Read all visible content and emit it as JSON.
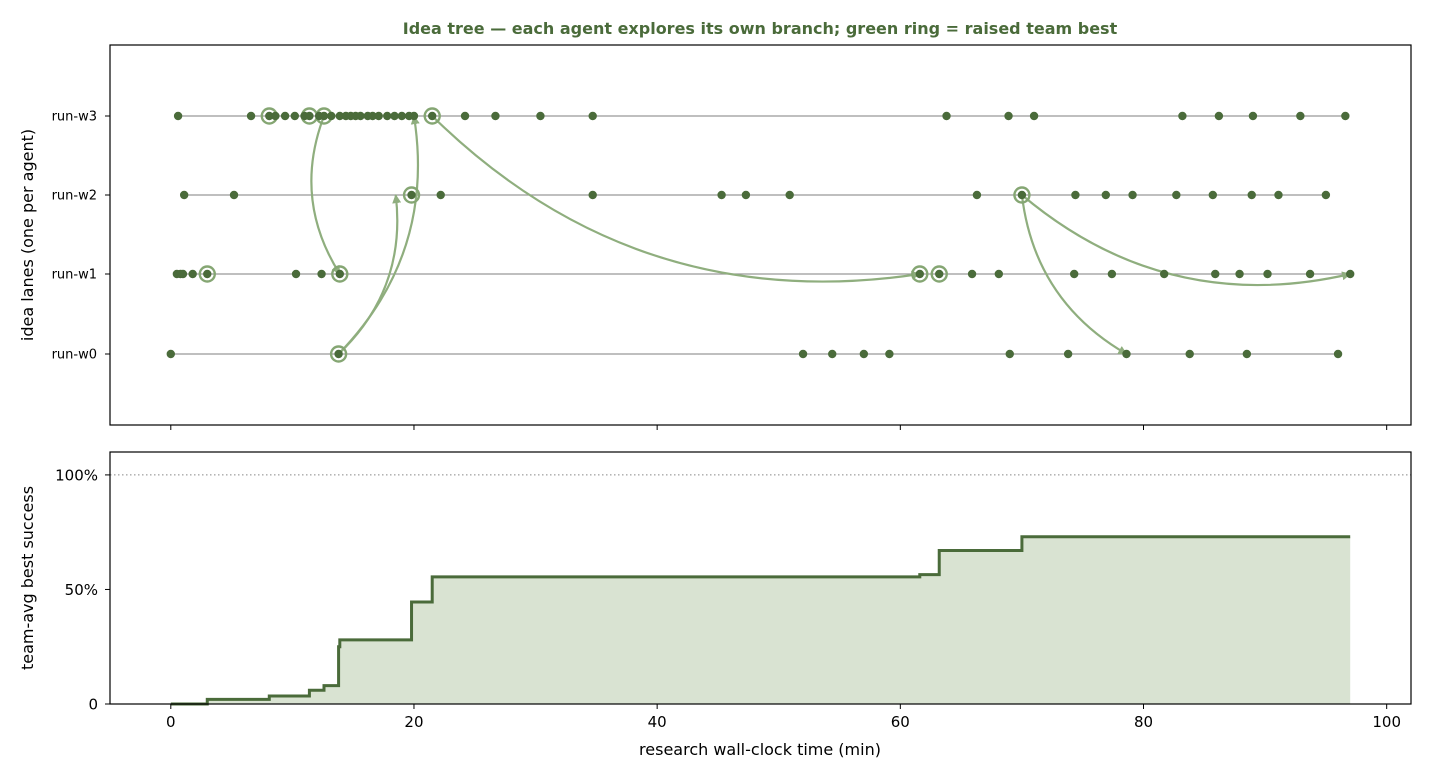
{
  "colors": {
    "title": "#4a6b3a",
    "dot": "#4a6b3a",
    "ring": "#85a673",
    "arrow": "#8fae7e",
    "lane": "#999999",
    "step": "#4a6b3a",
    "fill": "#d9e3d2",
    "refline": "#888888",
    "axis": "#000000"
  },
  "chart_data": [
    {
      "type": "scatter",
      "title": "Idea tree — each agent explores its own branch; green ring = raised team best",
      "ylabel": "idea lanes (one per agent)",
      "xlim": [
        -5,
        102
      ],
      "lanes": [
        "run-w0",
        "run-w1",
        "run-w2",
        "run-w3"
      ],
      "series": [
        {
          "lane": "run-w3",
          "points": [
            0.6,
            6.6,
            8.1,
            8.6,
            9.4,
            10.2,
            11.0,
            11.4,
            12.2,
            12.6,
            13.2,
            13.9,
            14.4,
            14.8,
            15.2,
            15.6,
            16.2,
            16.6,
            17.1,
            17.8,
            18.4,
            19.0,
            19.6,
            20.0,
            21.5,
            24.2,
            26.7,
            30.4,
            34.7,
            63.8,
            68.9,
            71.0,
            83.2,
            86.2,
            89.0,
            92.9,
            96.6
          ],
          "rings": [
            8.1,
            11.4,
            12.6,
            21.5
          ]
        },
        {
          "lane": "run-w2",
          "points": [
            1.1,
            5.2,
            19.8,
            22.2,
            34.7,
            45.3,
            47.3,
            50.9,
            66.3,
            70.0,
            74.4,
            76.9,
            79.1,
            82.7,
            85.7,
            88.9,
            91.1,
            95.0
          ],
          "rings": [
            19.8,
            70.0
          ]
        },
        {
          "lane": "run-w1",
          "points": [
            0.5,
            0.8,
            1.0,
            1.8,
            3.0,
            10.3,
            12.4,
            13.9,
            61.6,
            63.2,
            65.9,
            68.1,
            74.3,
            77.4,
            81.7,
            85.9,
            87.9,
            90.2,
            93.7,
            97.0
          ],
          "rings": [
            3.0,
            13.9,
            61.6,
            63.2
          ]
        },
        {
          "lane": "run-w0",
          "points": [
            0.0,
            13.8,
            52.0,
            54.4,
            57.0,
            59.1,
            69.0,
            73.8,
            78.6,
            83.8,
            88.5,
            96.0
          ],
          "rings": [
            13.8
          ]
        }
      ],
      "arrows": [
        {
          "from": {
            "lane": "run-w3",
            "x": 12.6
          },
          "to": {
            "lane": "run-w1",
            "x": 13.9
          }
        },
        {
          "from": {
            "lane": "run-w0",
            "x": 13.8
          },
          "to": {
            "lane": "run-w2",
            "x": 18.5
          }
        },
        {
          "from": {
            "lane": "run-w0",
            "x": 13.8
          },
          "to": {
            "lane": "run-w3",
            "x": 20.0
          }
        },
        {
          "from": {
            "lane": "run-w3",
            "x": 21.5
          },
          "to": {
            "lane": "run-w1",
            "x": 61.6
          }
        },
        {
          "from": {
            "lane": "run-w2",
            "x": 70.0
          },
          "to": {
            "lane": "run-w0",
            "x": 78.6
          }
        },
        {
          "from": {
            "lane": "run-w2",
            "x": 70.0
          },
          "to": {
            "lane": "run-w1",
            "x": 97.0
          }
        }
      ]
    },
    {
      "type": "area",
      "xlabel": "research wall-clock time (min)",
      "ylabel": "team-avg best success",
      "xlim": [
        -5,
        102
      ],
      "ylim": [
        0,
        110
      ],
      "x_ticks": [
        0,
        20,
        40,
        60,
        80,
        100
      ],
      "y_ticks": [
        0,
        50,
        100
      ],
      "y_tick_labels": [
        "0",
        "50%",
        "100%"
      ],
      "reference_line": 100,
      "steps": [
        {
          "x": 0,
          "y": 0
        },
        {
          "x": 3.0,
          "y": 2
        },
        {
          "x": 8.1,
          "y": 3.5
        },
        {
          "x": 11.4,
          "y": 6
        },
        {
          "x": 12.6,
          "y": 8
        },
        {
          "x": 13.8,
          "y": 25
        },
        {
          "x": 13.9,
          "y": 28
        },
        {
          "x": 19.8,
          "y": 44.5
        },
        {
          "x": 21.5,
          "y": 55.5
        },
        {
          "x": 61.6,
          "y": 56.5
        },
        {
          "x": 63.2,
          "y": 67
        },
        {
          "x": 70.0,
          "y": 73
        },
        {
          "x": 97.0,
          "y": 73
        }
      ]
    }
  ]
}
